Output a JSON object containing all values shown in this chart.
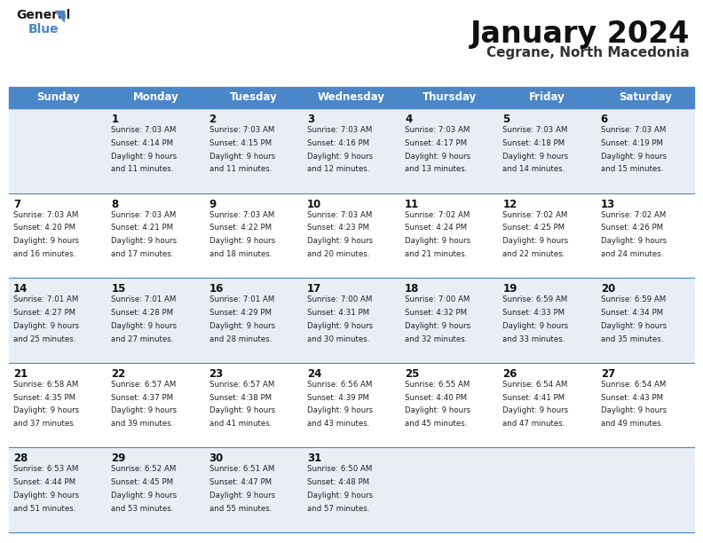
{
  "title": "January 2024",
  "subtitle": "Cegrane, North Macedonia",
  "header_color": "#4a86c8",
  "header_text_color": "#ffffff",
  "bg_color": "#ffffff",
  "row_even_color": "#e8eef4",
  "row_odd_color": "#ffffff",
  "border_color": "#4a86c8",
  "text_color": "#222222",
  "days_of_week": [
    "Sunday",
    "Monday",
    "Tuesday",
    "Wednesday",
    "Thursday",
    "Friday",
    "Saturday"
  ],
  "calendar": [
    [
      {
        "day": "",
        "sunrise": "",
        "sunset": "",
        "daylight_h": "",
        "daylight_m": ""
      },
      {
        "day": "1",
        "sunrise": "7:03 AM",
        "sunset": "4:14 PM",
        "daylight_h": "9",
        "daylight_m": "11"
      },
      {
        "day": "2",
        "sunrise": "7:03 AM",
        "sunset": "4:15 PM",
        "daylight_h": "9",
        "daylight_m": "11"
      },
      {
        "day": "3",
        "sunrise": "7:03 AM",
        "sunset": "4:16 PM",
        "daylight_h": "9",
        "daylight_m": "12"
      },
      {
        "day": "4",
        "sunrise": "7:03 AM",
        "sunset": "4:17 PM",
        "daylight_h": "9",
        "daylight_m": "13"
      },
      {
        "day": "5",
        "sunrise": "7:03 AM",
        "sunset": "4:18 PM",
        "daylight_h": "9",
        "daylight_m": "14"
      },
      {
        "day": "6",
        "sunrise": "7:03 AM",
        "sunset": "4:19 PM",
        "daylight_h": "9",
        "daylight_m": "15"
      }
    ],
    [
      {
        "day": "7",
        "sunrise": "7:03 AM",
        "sunset": "4:20 PM",
        "daylight_h": "9",
        "daylight_m": "16"
      },
      {
        "day": "8",
        "sunrise": "7:03 AM",
        "sunset": "4:21 PM",
        "daylight_h": "9",
        "daylight_m": "17"
      },
      {
        "day": "9",
        "sunrise": "7:03 AM",
        "sunset": "4:22 PM",
        "daylight_h": "9",
        "daylight_m": "18"
      },
      {
        "day": "10",
        "sunrise": "7:03 AM",
        "sunset": "4:23 PM",
        "daylight_h": "9",
        "daylight_m": "20"
      },
      {
        "day": "11",
        "sunrise": "7:02 AM",
        "sunset": "4:24 PM",
        "daylight_h": "9",
        "daylight_m": "21"
      },
      {
        "day": "12",
        "sunrise": "7:02 AM",
        "sunset": "4:25 PM",
        "daylight_h": "9",
        "daylight_m": "22"
      },
      {
        "day": "13",
        "sunrise": "7:02 AM",
        "sunset": "4:26 PM",
        "daylight_h": "9",
        "daylight_m": "24"
      }
    ],
    [
      {
        "day": "14",
        "sunrise": "7:01 AM",
        "sunset": "4:27 PM",
        "daylight_h": "9",
        "daylight_m": "25"
      },
      {
        "day": "15",
        "sunrise": "7:01 AM",
        "sunset": "4:28 PM",
        "daylight_h": "9",
        "daylight_m": "27"
      },
      {
        "day": "16",
        "sunrise": "7:01 AM",
        "sunset": "4:29 PM",
        "daylight_h": "9",
        "daylight_m": "28"
      },
      {
        "day": "17",
        "sunrise": "7:00 AM",
        "sunset": "4:31 PM",
        "daylight_h": "9",
        "daylight_m": "30"
      },
      {
        "day": "18",
        "sunrise": "7:00 AM",
        "sunset": "4:32 PM",
        "daylight_h": "9",
        "daylight_m": "32"
      },
      {
        "day": "19",
        "sunrise": "6:59 AM",
        "sunset": "4:33 PM",
        "daylight_h": "9",
        "daylight_m": "33"
      },
      {
        "day": "20",
        "sunrise": "6:59 AM",
        "sunset": "4:34 PM",
        "daylight_h": "9",
        "daylight_m": "35"
      }
    ],
    [
      {
        "day": "21",
        "sunrise": "6:58 AM",
        "sunset": "4:35 PM",
        "daylight_h": "9",
        "daylight_m": "37"
      },
      {
        "day": "22",
        "sunrise": "6:57 AM",
        "sunset": "4:37 PM",
        "daylight_h": "9",
        "daylight_m": "39"
      },
      {
        "day": "23",
        "sunrise": "6:57 AM",
        "sunset": "4:38 PM",
        "daylight_h": "9",
        "daylight_m": "41"
      },
      {
        "day": "24",
        "sunrise": "6:56 AM",
        "sunset": "4:39 PM",
        "daylight_h": "9",
        "daylight_m": "43"
      },
      {
        "day": "25",
        "sunrise": "6:55 AM",
        "sunset": "4:40 PM",
        "daylight_h": "9",
        "daylight_m": "45"
      },
      {
        "day": "26",
        "sunrise": "6:54 AM",
        "sunset": "4:41 PM",
        "daylight_h": "9",
        "daylight_m": "47"
      },
      {
        "day": "27",
        "sunrise": "6:54 AM",
        "sunset": "4:43 PM",
        "daylight_h": "9",
        "daylight_m": "49"
      }
    ],
    [
      {
        "day": "28",
        "sunrise": "6:53 AM",
        "sunset": "4:44 PM",
        "daylight_h": "9",
        "daylight_m": "51"
      },
      {
        "day": "29",
        "sunrise": "6:52 AM",
        "sunset": "4:45 PM",
        "daylight_h": "9",
        "daylight_m": "53"
      },
      {
        "day": "30",
        "sunrise": "6:51 AM",
        "sunset": "4:47 PM",
        "daylight_h": "9",
        "daylight_m": "55"
      },
      {
        "day": "31",
        "sunrise": "6:50 AM",
        "sunset": "4:48 PM",
        "daylight_h": "9",
        "daylight_m": "57"
      },
      {
        "day": "",
        "sunrise": "",
        "sunset": "",
        "daylight_h": "",
        "daylight_m": ""
      },
      {
        "day": "",
        "sunrise": "",
        "sunset": "",
        "daylight_h": "",
        "daylight_m": ""
      },
      {
        "day": "",
        "sunrise": "",
        "sunset": "",
        "daylight_h": "",
        "daylight_m": ""
      }
    ]
  ],
  "logo_general_color": "#1a1a1a",
  "logo_blue_color": "#4a86c8",
  "logo_triangle_color": "#4a86c8",
  "fig_width": 7.92,
  "fig_height": 6.12,
  "fig_dpi": 100
}
